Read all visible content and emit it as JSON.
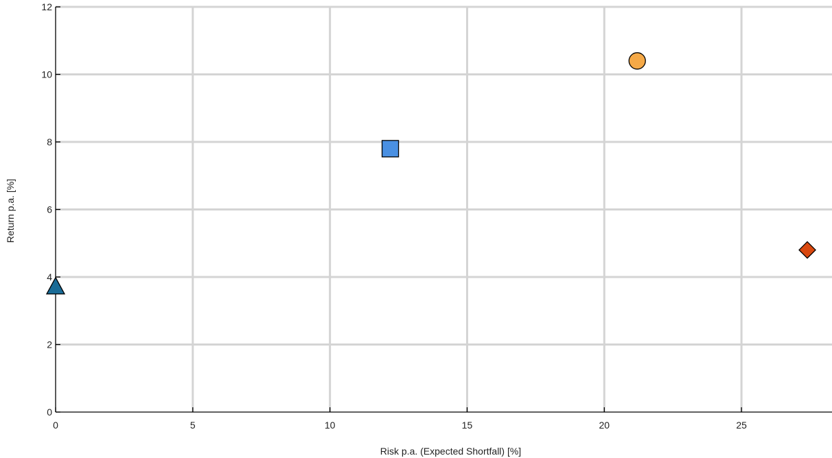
{
  "chart_data": {
    "type": "scatter",
    "title": "",
    "xlabel": "Risk p.a. (Expected Shortfall) [%]",
    "ylabel": "Return p.a. [%]",
    "xlim": [
      0,
      28.3
    ],
    "ylim": [
      0,
      12
    ],
    "xticks": [
      0,
      5,
      10,
      15,
      20,
      25
    ],
    "yticks": [
      0,
      2,
      4,
      6,
      8,
      10,
      12
    ],
    "grid": true,
    "points": [
      {
        "x": 0.0,
        "y": 3.7,
        "marker": "triangle",
        "color": "#1a6b96"
      },
      {
        "x": 12.2,
        "y": 7.8,
        "marker": "square",
        "color": "#4a90e2"
      },
      {
        "x": 21.2,
        "y": 10.4,
        "marker": "circle",
        "color": "#f5a947"
      },
      {
        "x": 27.4,
        "y": 4.8,
        "marker": "diamond",
        "color": "#d9480f"
      }
    ]
  }
}
